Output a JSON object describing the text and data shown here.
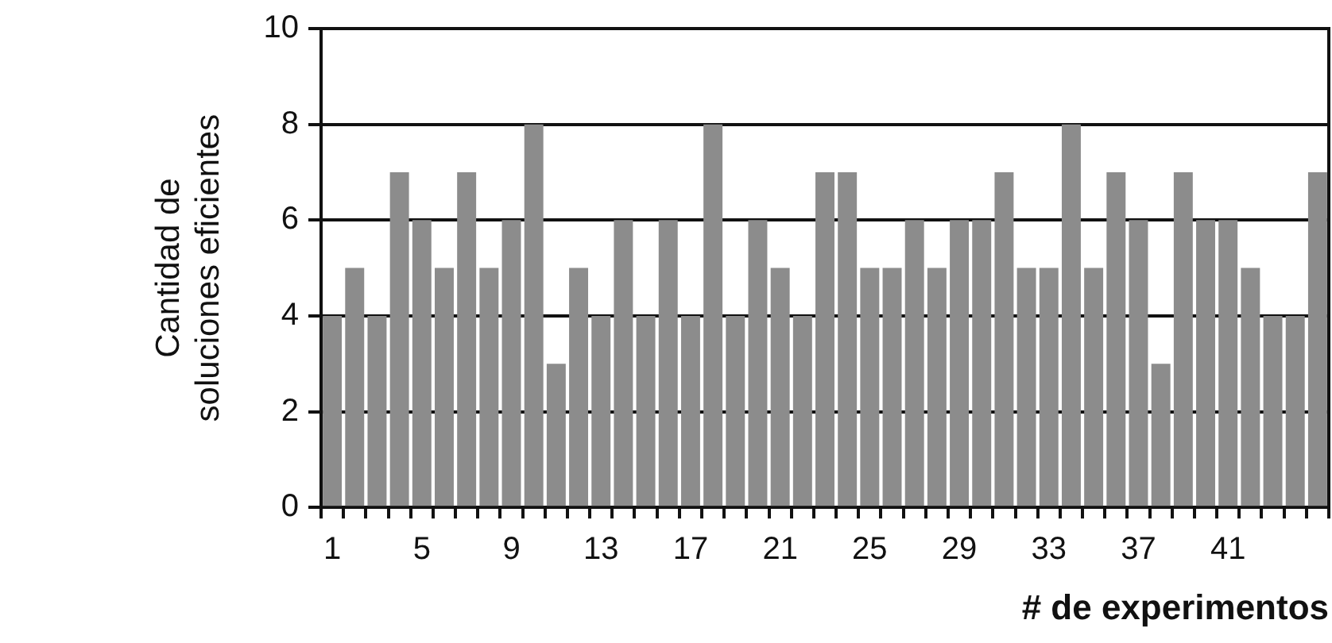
{
  "chart_data": {
    "type": "bar",
    "xlabel": "# de experimentos",
    "ylabel": "Cantidad de\nsoluciones eficientes",
    "categories": [
      "1",
      null,
      null,
      null,
      "5",
      null,
      null,
      null,
      "9",
      null,
      null,
      null,
      "13",
      null,
      null,
      null,
      "17",
      null,
      null,
      null,
      "21",
      null,
      null,
      null,
      "25",
      null,
      null,
      null,
      "29",
      null,
      null,
      null,
      "33",
      null,
      null,
      null,
      "37",
      null,
      null,
      null,
      "41",
      null,
      null,
      null,
      null
    ],
    "values": [
      4,
      5,
      4,
      7,
      6,
      5,
      7,
      5,
      6,
      8,
      3,
      5,
      4,
      6,
      4,
      6,
      4,
      8,
      4,
      6,
      5,
      4,
      7,
      7,
      5,
      5,
      6,
      5,
      6,
      6,
      7,
      5,
      5,
      8,
      5,
      7,
      6,
      3,
      7,
      6,
      6,
      5,
      4,
      4,
      7
    ],
    "color": "#8c8c8c",
    "ylim": [
      0,
      10
    ],
    "yticks": [
      0,
      2,
      4,
      6,
      8,
      10
    ],
    "grid": "y",
    "legend": false
  }
}
